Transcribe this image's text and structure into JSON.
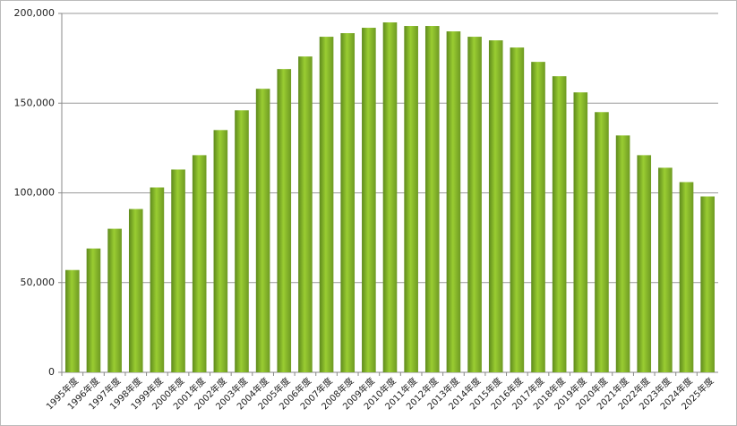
{
  "chart_data": {
    "type": "bar",
    "categories": [
      "1995年度",
      "1996年度",
      "1997年度",
      "1998年度",
      "1999年度",
      "2000年度",
      "2001年度",
      "2002年度",
      "2003年度",
      "2004年度",
      "2005年度",
      "2006年度",
      "2007年度",
      "2008年度",
      "2009年度",
      "2010年度",
      "2011年度",
      "2012年度",
      "2013年度",
      "2014年度",
      "2015年度",
      "2016年度",
      "2017年度",
      "2018年度",
      "2019年度",
      "2020年度",
      "2021年度",
      "2022年度",
      "2023年度",
      "2024年度",
      "2025年度"
    ],
    "values": [
      57000,
      69000,
      80000,
      91000,
      103000,
      113000,
      121000,
      135000,
      146000,
      158000,
      169000,
      176000,
      187000,
      189000,
      192000,
      195000,
      193000,
      193000,
      190000,
      187000,
      185000,
      181000,
      173000,
      165000,
      156000,
      145000,
      132000,
      121000,
      114000,
      106000,
      98000
    ],
    "color": "#9acd32",
    "ylim": [
      0,
      200000
    ],
    "yticks": [
      0,
      {
        "value": 50000,
        "label": "50,000"
      },
      {
        "value": 100000,
        "label": "100,000"
      },
      {
        "value": 150000,
        "label": "150,000"
      },
      {
        "value": 200000,
        "label": "200,000"
      }
    ],
    "grid": true
  }
}
